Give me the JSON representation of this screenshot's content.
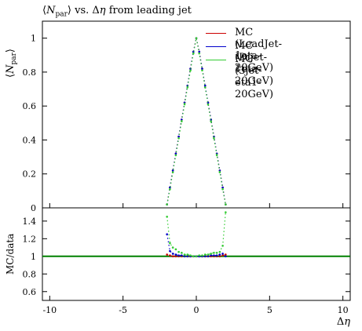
{
  "chart_data": {
    "type": "line",
    "title": "⟨N_par⟩ vs. Δη from leading jet",
    "top_panel": {
      "ylabel": "⟨N_par⟩",
      "xlim": [
        -10.5,
        10.5
      ],
      "ylim": [
        0,
        1.1
      ],
      "yticks": [
        "0",
        "0.2",
        "0.4",
        "0.6",
        "0.8",
        "1"
      ],
      "x": [
        -2.0,
        -1.8,
        -1.6,
        -1.4,
        -1.2,
        -1.0,
        -0.8,
        -0.6,
        -0.4,
        -0.2,
        0.0,
        0.2,
        0.4,
        0.6,
        0.8,
        1.0,
        1.2,
        1.4,
        1.6,
        1.8,
        2.0
      ],
      "series": [
        {
          "name": "MC (LeadJet-1eta-20GeV)",
          "color": "#cc0000",
          "values": [
            0.02,
            0.12,
            0.22,
            0.32,
            0.42,
            0.52,
            0.62,
            0.72,
            0.82,
            0.92,
            1.0,
            0.92,
            0.82,
            0.72,
            0.62,
            0.52,
            0.42,
            0.32,
            0.22,
            0.12,
            0.02
          ]
        },
        {
          "name": "MC (Dijet-1eta-20GeV)",
          "color": "#0000cc",
          "values": [
            0.02,
            0.12,
            0.22,
            0.32,
            0.42,
            0.52,
            0.62,
            0.72,
            0.82,
            0.92,
            1.0,
            0.92,
            0.82,
            0.72,
            0.62,
            0.52,
            0.42,
            0.32,
            0.22,
            0.12,
            0.02
          ]
        },
        {
          "name": "MC (3jet-eta1-20GeV)",
          "color": "#33cc33",
          "values": [
            0.02,
            0.11,
            0.21,
            0.31,
            0.41,
            0.51,
            0.61,
            0.71,
            0.81,
            0.91,
            1.0,
            0.91,
            0.81,
            0.71,
            0.61,
            0.51,
            0.41,
            0.31,
            0.21,
            0.11,
            0.02
          ]
        }
      ]
    },
    "ratio_panel": {
      "ylabel": "MC/data",
      "ylim": [
        0.5,
        1.55
      ],
      "yticks": [
        "0.6",
        "0.8",
        "1",
        "1.2",
        "1.4"
      ],
      "reference_value": 1.0,
      "reference_color": "#008000",
      "x": [
        -2.0,
        -1.8,
        -1.6,
        -1.4,
        -1.2,
        -1.0,
        -0.8,
        -0.6,
        -0.4,
        -0.2,
        0.0,
        0.2,
        0.4,
        0.6,
        0.8,
        1.0,
        1.2,
        1.4,
        1.6,
        1.8,
        2.0
      ],
      "series": [
        {
          "name": "MC (LeadJet-1eta-20GeV)",
          "color": "#cc0000",
          "values": [
            1.02,
            1.01,
            1.0,
            1.0,
            1.0,
            1.0,
            1.0,
            1.0,
            1.0,
            1.0,
            1.0,
            1.0,
            1.0,
            1.0,
            1.0,
            1.0,
            1.0,
            1.0,
            1.0,
            1.01,
            1.02
          ]
        },
        {
          "name": "MC (Dijet-1eta-20GeV)",
          "color": "#0000cc",
          "values": [
            1.25,
            1.06,
            1.03,
            1.02,
            1.01,
            1.01,
            1.0,
            1.0,
            1.0,
            1.0,
            1.0,
            1.0,
            1.0,
            1.0,
            1.0,
            1.01,
            1.01,
            1.01,
            1.02,
            1.03,
            1.0
          ]
        },
        {
          "name": "MC (3jet-eta1-20GeV)",
          "color": "#33cc33",
          "values": [
            1.45,
            1.15,
            1.1,
            1.08,
            1.05,
            1.04,
            1.02,
            1.02,
            1.01,
            1.0,
            1.0,
            1.01,
            1.01,
            1.02,
            1.02,
            1.03,
            1.04,
            1.04,
            1.05,
            1.12,
            1.5
          ]
        }
      ]
    },
    "xlabel": "Δη",
    "xticks": [
      "-10",
      "-5",
      "0",
      "5",
      "10"
    ],
    "legend_position": "top-right",
    "grid": false
  }
}
